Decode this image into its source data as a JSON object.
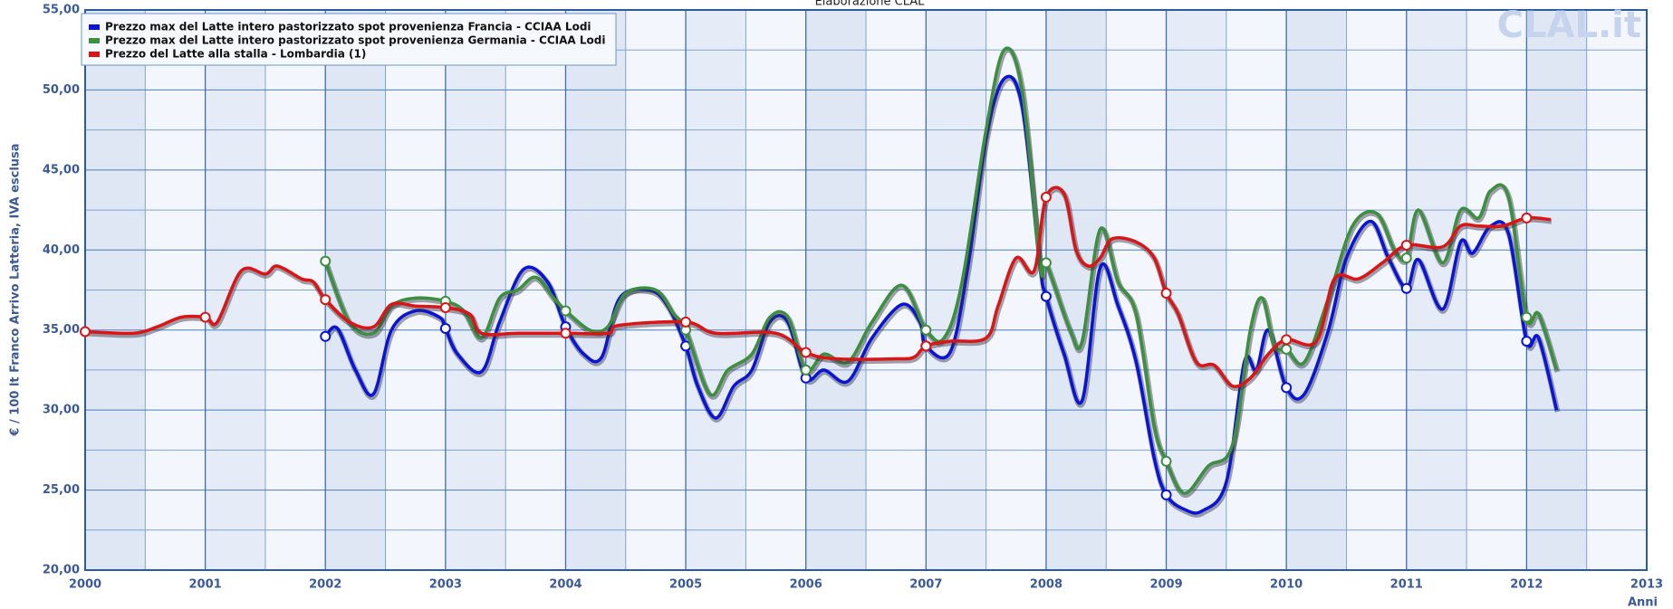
{
  "chart_data": {
    "type": "line",
    "title": "Elaborazione CLAL",
    "watermark": "CLAL.it",
    "ylabel": "€ / 100 lt Franco Arrivo Latteria, IVA esclusa",
    "xlabel": "Anni",
    "xlim": [
      2000,
      2013
    ],
    "xticks": [
      2000,
      2001,
      2002,
      2003,
      2004,
      2005,
      2006,
      2007,
      2008,
      2009,
      2010,
      2011,
      2012,
      2013
    ],
    "ylim": [
      20,
      55
    ],
    "yticks": [
      {
        "value": 20,
        "label": "20,00"
      },
      {
        "value": 25,
        "label": "25,00"
      },
      {
        "value": 30,
        "label": "30,00"
      },
      {
        "value": 35,
        "label": "35,00"
      },
      {
        "value": 40,
        "label": "40,00"
      },
      {
        "value": 45,
        "label": "45,00"
      },
      {
        "value": 50,
        "label": "50,00"
      },
      {
        "value": 55,
        "label": "55,00"
      }
    ],
    "grid": true,
    "legend": "top-left",
    "series": [
      {
        "name": "Prezzo max del Latte intero pastorizzato spot provenienza Francia - CCIAA Lodi",
        "color": "#0a14d8",
        "x": [
          2002.0,
          2002.1,
          2002.25,
          2002.4,
          2002.55,
          2002.75,
          2002.95,
          2003.0,
          2003.1,
          2003.3,
          2003.45,
          2003.65,
          2003.85,
          2004.0,
          2004.15,
          2004.3,
          2004.45,
          2004.7,
          2004.85,
          2005.0,
          2005.1,
          2005.25,
          2005.4,
          2005.55,
          2005.7,
          2005.85,
          2006.0,
          2006.15,
          2006.35,
          2006.55,
          2006.8,
          2006.95,
          2007.0,
          2007.2,
          2007.35,
          2007.5,
          2007.65,
          2007.8,
          2007.95,
          2008.0,
          2008.15,
          2008.3,
          2008.45,
          2008.6,
          2008.75,
          2008.9,
          2009.0,
          2009.15,
          2009.3,
          2009.5,
          2009.65,
          2009.75,
          2009.85,
          2010.0,
          2010.15,
          2010.35,
          2010.5,
          2010.7,
          2010.85,
          2011.0,
          2011.1,
          2011.3,
          2011.45,
          2011.55,
          2011.7,
          2011.85,
          2012.0,
          2012.1,
          2012.25
        ],
        "values": [
          34.6,
          35.1,
          32.5,
          31.0,
          35.0,
          36.2,
          35.8,
          35.1,
          33.5,
          32.4,
          35.5,
          38.8,
          38.0,
          35.2,
          33.5,
          33.3,
          37.0,
          37.5,
          36.5,
          34.0,
          31.5,
          29.5,
          31.5,
          32.5,
          35.5,
          35.5,
          32.0,
          32.5,
          31.8,
          34.5,
          36.6,
          35.5,
          34.0,
          33.6,
          39.0,
          47.0,
          50.7,
          49.0,
          39.0,
          37.1,
          33.5,
          30.6,
          38.9,
          36.5,
          33.0,
          27.0,
          24.7,
          23.8,
          23.7,
          25.5,
          33.0,
          32.5,
          35.0,
          31.4,
          31.0,
          35.0,
          39.5,
          41.8,
          39.5,
          37.6,
          39.4,
          36.3,
          40.5,
          39.8,
          41.5,
          41.0,
          34.3,
          34.5,
          30.0
        ]
      },
      {
        "name": "Prezzo max del Latte intero pastorizzato spot provenienza Germania - CCIAA Lodi",
        "color": "#3c8f3c",
        "x": [
          2002.0,
          2002.2,
          2002.4,
          2002.55,
          2002.75,
          2003.0,
          2003.15,
          2003.3,
          2003.45,
          2003.6,
          2003.75,
          2003.9,
          2004.0,
          2004.2,
          2004.35,
          2004.5,
          2004.75,
          2004.9,
          2005.0,
          2005.2,
          2005.35,
          2005.55,
          2005.7,
          2005.85,
          2006.0,
          2006.15,
          2006.35,
          2006.55,
          2006.8,
          2007.0,
          2007.15,
          2007.3,
          2007.5,
          2007.65,
          2007.8,
          2007.95,
          2008.0,
          2008.2,
          2008.3,
          2008.45,
          2008.6,
          2008.75,
          2008.9,
          2009.0,
          2009.15,
          2009.35,
          2009.55,
          2009.7,
          2009.8,
          2009.9,
          2010.0,
          2010.15,
          2010.35,
          2010.55,
          2010.75,
          2010.9,
          2011.0,
          2011.1,
          2011.3,
          2011.45,
          2011.6,
          2011.7,
          2011.85,
          2012.0,
          2012.1,
          2012.25
        ],
        "values": [
          39.3,
          35.5,
          34.8,
          36.5,
          37.0,
          36.8,
          36.2,
          34.5,
          37.0,
          37.5,
          38.3,
          37.0,
          36.2,
          35.0,
          35.2,
          37.3,
          37.5,
          36.0,
          35.0,
          31.0,
          32.5,
          33.5,
          35.8,
          35.8,
          32.5,
          33.5,
          33.0,
          35.5,
          37.8,
          35.0,
          34.5,
          38.0,
          47.5,
          52.5,
          50.0,
          39.0,
          39.2,
          35.0,
          34.3,
          41.3,
          38.0,
          36.0,
          29.0,
          26.8,
          24.8,
          26.5,
          27.8,
          35.0,
          37.0,
          34.0,
          33.8,
          33.0,
          37.0,
          41.5,
          42.3,
          40.0,
          39.5,
          42.5,
          39.2,
          42.5,
          42.0,
          43.7,
          43.3,
          35.8,
          36.0,
          32.5
        ]
      },
      {
        "name": "Prezzo del Latte alla stalla - Lombardia (1)",
        "color": "#dd1414",
        "x": [
          2000.0,
          2000.4,
          2000.6,
          2000.8,
          2001.0,
          2001.1,
          2001.3,
          2001.5,
          2001.6,
          2001.8,
          2001.9,
          2002.0,
          2002.2,
          2002.4,
          2002.55,
          2002.75,
          2003.0,
          2003.2,
          2003.3,
          2003.6,
          2004.0,
          2004.35,
          2004.45,
          2005.0,
          2005.25,
          2005.75,
          2006.0,
          2006.25,
          2006.75,
          2006.9,
          2007.0,
          2007.2,
          2007.5,
          2007.6,
          2007.75,
          2007.9,
          2008.0,
          2008.15,
          2008.25,
          2008.35,
          2008.45,
          2008.55,
          2008.75,
          2008.9,
          2009.0,
          2009.1,
          2009.25,
          2009.4,
          2009.55,
          2009.7,
          2009.85,
          2010.0,
          2010.25,
          2010.4,
          2010.6,
          2010.8,
          2011.0,
          2011.3,
          2011.45,
          2011.6,
          2011.8,
          2012.0,
          2012.2
        ],
        "values": [
          34.9,
          34.8,
          35.2,
          35.8,
          35.8,
          35.5,
          38.7,
          38.5,
          39.0,
          38.2,
          38.0,
          36.9,
          35.5,
          35.2,
          36.6,
          36.5,
          36.4,
          36.0,
          34.8,
          34.8,
          34.8,
          34.8,
          35.3,
          35.5,
          34.8,
          34.8,
          33.6,
          33.2,
          33.2,
          33.3,
          34.0,
          34.3,
          34.5,
          36.5,
          39.5,
          38.7,
          43.3,
          43.5,
          40.0,
          39.0,
          39.5,
          40.7,
          40.5,
          39.5,
          37.3,
          36.0,
          33.0,
          32.8,
          31.5,
          32.0,
          33.5,
          34.4,
          34.3,
          38.2,
          38.2,
          39.2,
          40.3,
          40.2,
          41.5,
          41.5,
          41.5,
          42.0,
          41.9
        ]
      }
    ]
  }
}
